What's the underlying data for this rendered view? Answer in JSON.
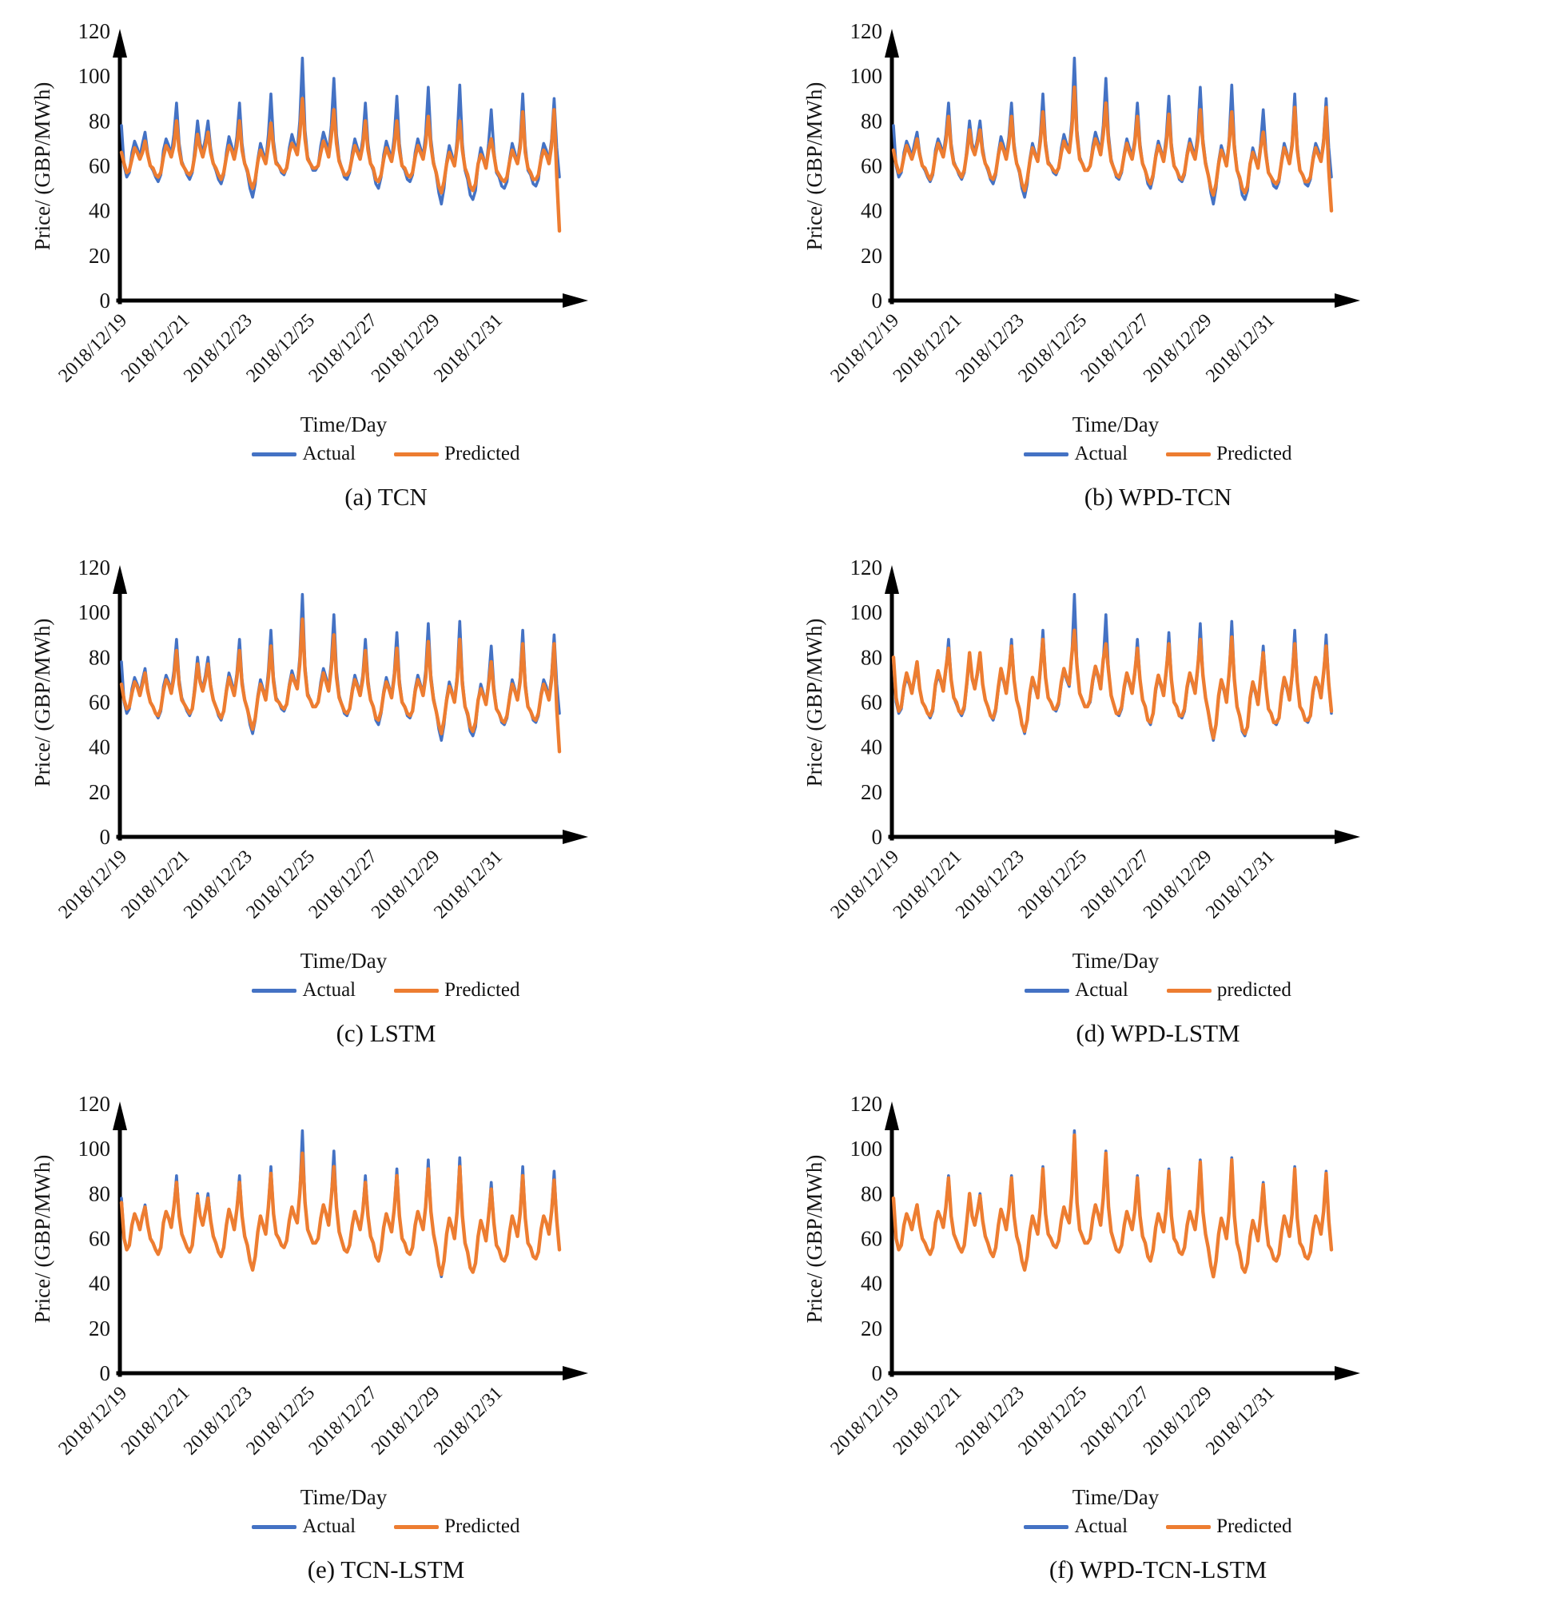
{
  "chart_data": {
    "type": "line",
    "xlabel": "Time/Day",
    "ylabel": "Price/ (GBP/MWh)",
    "ylim": [
      0,
      120
    ],
    "y_ticks": [
      0,
      20,
      40,
      60,
      80,
      100,
      120
    ],
    "x_tick_labels": [
      "2018/12/19",
      "2018/12/21",
      "2018/12/23",
      "2018/12/25",
      "2018/12/27",
      "2018/12/29",
      "2018/12/31"
    ],
    "days": 14,
    "points_per_day": 12,
    "x_unit": "2-hour steps from 2018/12/19 to 2019/01/01",
    "grid": false,
    "legend_position": "bottom",
    "colors": {
      "actual": "#4472C4",
      "predicted": "#ED7D31"
    },
    "actual": [
      78,
      60,
      55,
      57,
      66,
      71,
      68,
      64,
      70,
      75,
      66,
      60,
      58,
      55,
      53,
      56,
      67,
      72,
      69,
      65,
      74,
      88,
      70,
      62,
      59,
      56,
      54,
      57,
      68,
      80,
      70,
      66,
      72,
      80,
      68,
      61,
      58,
      54,
      52,
      56,
      66,
      73,
      69,
      64,
      73,
      88,
      70,
      61,
      57,
      50,
      46,
      52,
      63,
      70,
      66,
      62,
      74,
      92,
      71,
      62,
      60,
      57,
      56,
      59,
      68,
      74,
      70,
      67,
      80,
      108,
      76,
      64,
      61,
      58,
      58,
      60,
      69,
      75,
      71,
      66,
      78,
      99,
      74,
      63,
      59,
      55,
      54,
      57,
      66,
      72,
      68,
      64,
      72,
      88,
      70,
      61,
      58,
      52,
      50,
      55,
      65,
      71,
      67,
      63,
      73,
      91,
      70,
      60,
      58,
      54,
      53,
      56,
      66,
      72,
      68,
      64,
      74,
      95,
      72,
      62,
      56,
      48,
      43,
      50,
      62,
      69,
      65,
      60,
      72,
      96,
      70,
      58,
      54,
      47,
      45,
      49,
      61,
      68,
      64,
      59,
      70,
      85,
      67,
      57,
      55,
      51,
      50,
      53,
      63,
      70,
      66,
      61,
      71,
      92,
      69,
      58,
      56,
      52,
      51,
      54,
      64,
      70,
      67,
      62,
      72,
      90,
      68,
      55
    ],
    "panels": [
      {
        "caption": "(a) TCN",
        "legend_actual": "Actual",
        "legend_predicted": "Predicted",
        "predicted": [
          66,
          61,
          57,
          58,
          63,
          68,
          66,
          63,
          66,
          71,
          65,
          60,
          59,
          56,
          55,
          57,
          64,
          69,
          67,
          64,
          69,
          80,
          67,
          61,
          59,
          57,
          56,
          58,
          65,
          74,
          68,
          64,
          69,
          75,
          66,
          61,
          59,
          56,
          54,
          57,
          64,
          69,
          67,
          63,
          69,
          80,
          67,
          61,
          58,
          53,
          50,
          54,
          62,
          67,
          64,
          61,
          69,
          79,
          68,
          61,
          60,
          58,
          57,
          59,
          66,
          70,
          68,
          65,
          74,
          90,
          72,
          63,
          61,
          59,
          59,
          60,
          66,
          71,
          68,
          64,
          73,
          85,
          70,
          62,
          59,
          56,
          56,
          58,
          64,
          69,
          66,
          63,
          69,
          80,
          67,
          61,
          59,
          54,
          53,
          56,
          63,
          68,
          65,
          62,
          69,
          80,
          67,
          60,
          59,
          56,
          55,
          57,
          64,
          69,
          66,
          63,
          70,
          82,
          69,
          61,
          57,
          51,
          48,
          53,
          61,
          66,
          63,
          60,
          69,
          80,
          67,
          59,
          56,
          51,
          49,
          52,
          61,
          65,
          63,
          59,
          67,
          72,
          65,
          58,
          56,
          54,
          53,
          55,
          62,
          67,
          64,
          61,
          68,
          84,
          66,
          59,
          57,
          54,
          54,
          56,
          63,
          67,
          65,
          61,
          69,
          85,
          55,
          31
        ]
      },
      {
        "caption": "(b) WPD-TCN",
        "legend_actual": "Actual",
        "legend_predicted": "Predicted",
        "predicted": [
          67,
          61,
          57,
          58,
          64,
          69,
          66,
          63,
          67,
          72,
          65,
          60,
          59,
          56,
          54,
          57,
          65,
          70,
          67,
          64,
          71,
          82,
          68,
          61,
          59,
          57,
          55,
          58,
          66,
          76,
          68,
          65,
          70,
          76,
          66,
          61,
          59,
          55,
          54,
          57,
          65,
          70,
          67,
          63,
          70,
          82,
          68,
          61,
          58,
          52,
          49,
          54,
          62,
          68,
          65,
          62,
          71,
          84,
          69,
          61,
          60,
          58,
          57,
          59,
          66,
          71,
          68,
          66,
          76,
          95,
          73,
          63,
          61,
          58,
          58,
          60,
          67,
          72,
          69,
          65,
          74,
          88,
          71,
          62,
          59,
          56,
          55,
          58,
          65,
          70,
          66,
          63,
          70,
          82,
          68,
          61,
          58,
          54,
          52,
          56,
          64,
          69,
          66,
          62,
          70,
          83,
          68,
          60,
          58,
          55,
          54,
          57,
          65,
          70,
          66,
          63,
          71,
          85,
          70,
          61,
          56,
          50,
          47,
          52,
          61,
          67,
          64,
          60,
          70,
          84,
          68,
          58,
          55,
          50,
          48,
          51,
          61,
          66,
          63,
          59,
          68,
          75,
          65,
          57,
          55,
          53,
          52,
          54,
          62,
          68,
          65,
          61,
          69,
          86,
          67,
          58,
          56,
          53,
          53,
          55,
          63,
          68,
          65,
          62,
          70,
          86,
          58,
          40
        ]
      },
      {
        "caption": "(c) LSTM",
        "legend_actual": "Actual",
        "legend_predicted": "Predicted",
        "predicted": [
          68,
          61,
          57,
          58,
          64,
          69,
          67,
          63,
          68,
          73,
          65,
          60,
          58,
          55,
          54,
          57,
          65,
          70,
          68,
          64,
          71,
          83,
          68,
          61,
          59,
          57,
          55,
          57,
          66,
          77,
          69,
          65,
          70,
          77,
          67,
          61,
          58,
          55,
          53,
          56,
          65,
          71,
          67,
          63,
          71,
          83,
          68,
          61,
          57,
          52,
          48,
          53,
          62,
          68,
          65,
          61,
          71,
          85,
          69,
          61,
          60,
          58,
          57,
          59,
          67,
          72,
          69,
          66,
          77,
          97,
          74,
          63,
          61,
          58,
          58,
          60,
          67,
          73,
          69,
          65,
          75,
          90,
          71,
          62,
          59,
          56,
          55,
          57,
          65,
          70,
          67,
          63,
          70,
          83,
          68,
          61,
          58,
          53,
          52,
          56,
          64,
          69,
          66,
          62,
          71,
          84,
          68,
          60,
          58,
          55,
          54,
          56,
          65,
          70,
          67,
          63,
          71,
          87,
          70,
          61,
          56,
          50,
          46,
          52,
          61,
          67,
          64,
          60,
          70,
          88,
          68,
          58,
          55,
          49,
          47,
          51,
          61,
          66,
          63,
          59,
          68,
          78,
          65,
          57,
          55,
          52,
          51,
          54,
          62,
          68,
          65,
          61,
          69,
          86,
          67,
          58,
          56,
          53,
          52,
          55,
          63,
          68,
          65,
          61,
          70,
          86,
          57,
          38
        ]
      },
      {
        "caption": "(d) WPD-LSTM",
        "legend_actual": "Actual",
        "legend_predicted": "predicted",
        "predicted": [
          80,
          62,
          56,
          58,
          67,
          73,
          69,
          64,
          71,
          78,
          66,
          60,
          58,
          55,
          54,
          57,
          68,
          74,
          70,
          65,
          75,
          84,
          70,
          62,
          60,
          56,
          55,
          58,
          69,
          82,
          71,
          66,
          73,
          82,
          68,
          61,
          58,
          54,
          53,
          57,
          67,
          75,
          70,
          64,
          74,
          85,
          70,
          61,
          57,
          50,
          47,
          52,
          64,
          71,
          67,
          62,
          75,
          88,
          71,
          62,
          60,
          57,
          57,
          60,
          69,
          75,
          71,
          68,
          81,
          92,
          76,
          64,
          61,
          58,
          58,
          61,
          70,
          76,
          72,
          66,
          79,
          86,
          74,
          63,
          59,
          55,
          55,
          58,
          67,
          73,
          69,
          64,
          73,
          84,
          70,
          61,
          58,
          52,
          51,
          55,
          66,
          72,
          68,
          63,
          74,
          86,
          70,
          60,
          58,
          54,
          54,
          57,
          67,
          73,
          69,
          64,
          75,
          88,
          72,
          62,
          56,
          49,
          44,
          50,
          63,
          70,
          66,
          60,
          73,
          89,
          70,
          58,
          54,
          48,
          46,
          49,
          62,
          69,
          65,
          59,
          71,
          82,
          67,
          57,
          55,
          51,
          51,
          53,
          64,
          71,
          67,
          61,
          72,
          86,
          69,
          58,
          56,
          52,
          52,
          54,
          65,
          71,
          68,
          62,
          73,
          85,
          68,
          56
        ]
      },
      {
        "caption": "(e) TCN-LSTM",
        "legend_actual": "Actual",
        "legend_predicted": "Predicted",
        "predicted": [
          76,
          60,
          55,
          57,
          66,
          71,
          68,
          64,
          70,
          74,
          66,
          60,
          58,
          55,
          53,
          56,
          67,
          72,
          69,
          65,
          74,
          85,
          70,
          62,
          59,
          56,
          54,
          57,
          68,
          79,
          70,
          66,
          72,
          78,
          68,
          61,
          58,
          54,
          52,
          56,
          66,
          73,
          69,
          64,
          73,
          85,
          70,
          61,
          57,
          50,
          46,
          52,
          63,
          70,
          66,
          62,
          74,
          89,
          71,
          62,
          60,
          57,
          56,
          59,
          68,
          74,
          70,
          67,
          80,
          98,
          76,
          64,
          61,
          58,
          58,
          60,
          69,
          75,
          71,
          66,
          78,
          92,
          74,
          63,
          59,
          55,
          54,
          57,
          66,
          72,
          68,
          64,
          72,
          85,
          70,
          61,
          58,
          52,
          50,
          55,
          65,
          71,
          67,
          63,
          73,
          88,
          70,
          60,
          58,
          54,
          53,
          56,
          66,
          72,
          68,
          64,
          74,
          91,
          72,
          62,
          56,
          48,
          44,
          50,
          62,
          69,
          65,
          60,
          72,
          92,
          70,
          58,
          54,
          47,
          45,
          49,
          61,
          68,
          64,
          59,
          70,
          82,
          67,
          57,
          55,
          51,
          50,
          53,
          63,
          70,
          66,
          61,
          71,
          88,
          69,
          58,
          56,
          52,
          51,
          54,
          64,
          70,
          67,
          62,
          72,
          86,
          68,
          55
        ]
      },
      {
        "caption": "(f) WPD-TCN-LSTM",
        "legend_actual": "Actual",
        "legend_predicted": "Predicted",
        "predicted": [
          78,
          60,
          55,
          57,
          66,
          71,
          68,
          64,
          70,
          75,
          66,
          60,
          58,
          55,
          53,
          56,
          67,
          72,
          69,
          65,
          74,
          87,
          70,
          62,
          59,
          56,
          54,
          57,
          68,
          80,
          70,
          66,
          72,
          79,
          68,
          61,
          58,
          54,
          52,
          56,
          66,
          73,
          69,
          64,
          73,
          87,
          70,
          61,
          57,
          50,
          46,
          52,
          63,
          70,
          66,
          62,
          74,
          91,
          71,
          62,
          60,
          57,
          56,
          59,
          68,
          74,
          70,
          67,
          80,
          106,
          76,
          64,
          61,
          58,
          58,
          60,
          69,
          75,
          71,
          66,
          78,
          98,
          74,
          63,
          59,
          55,
          54,
          57,
          66,
          72,
          68,
          64,
          72,
          87,
          70,
          61,
          58,
          52,
          50,
          55,
          65,
          71,
          67,
          63,
          73,
          90,
          70,
          60,
          58,
          54,
          53,
          56,
          66,
          72,
          68,
          64,
          74,
          94,
          72,
          62,
          56,
          48,
          43,
          50,
          62,
          69,
          65,
          60,
          72,
          95,
          70,
          58,
          54,
          47,
          45,
          49,
          61,
          68,
          64,
          59,
          70,
          84,
          67,
          57,
          55,
          51,
          50,
          53,
          63,
          70,
          66,
          61,
          71,
          91,
          69,
          58,
          56,
          52,
          51,
          54,
          64,
          70,
          67,
          62,
          72,
          89,
          68,
          55
        ]
      }
    ]
  }
}
